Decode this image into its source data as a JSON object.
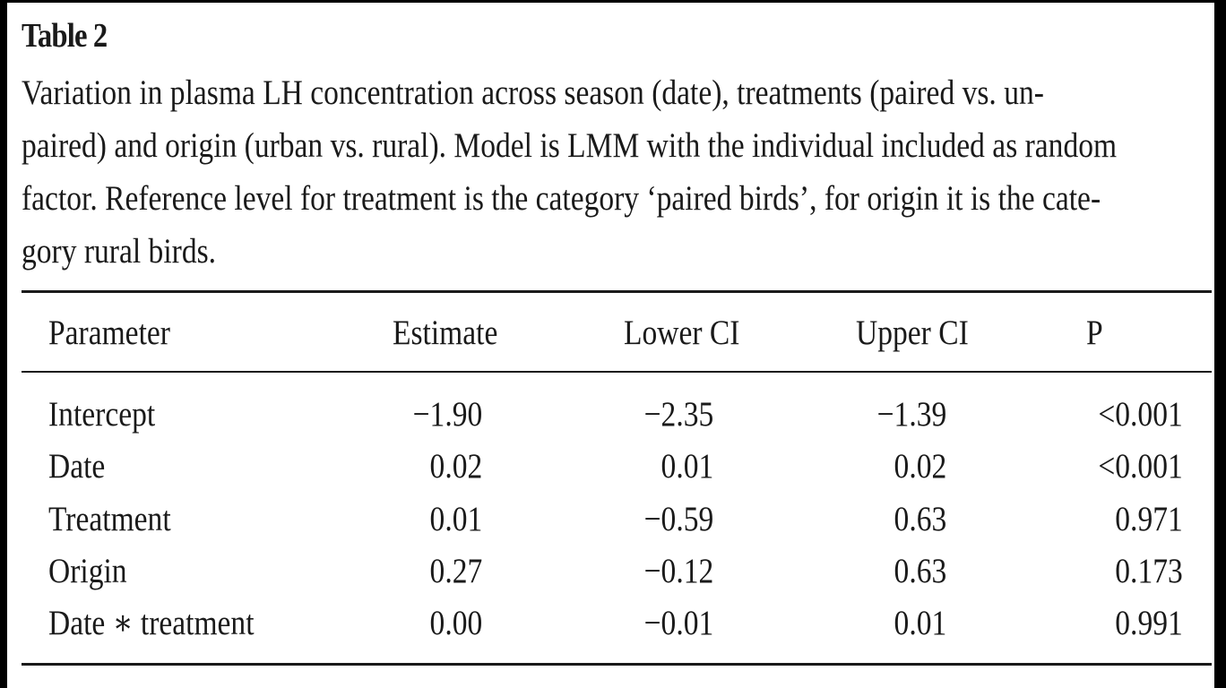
{
  "table_label": "Table 2",
  "caption_lines": [
    "Variation in plasma LH concentration across season (date), treatments (paired vs. un-",
    "paired) and origin (urban vs. rural). Model is LMM with the individual included as random",
    "factor. Reference level for treatment is the category ‘paired birds’, for origin it is the cate-",
    "gory rural birds."
  ],
  "table": {
    "headers": [
      "Parameter",
      "Estimate",
      "Lower CI",
      "Upper CI",
      "P"
    ],
    "rows": [
      [
        "Intercept",
        "−1.90",
        "−2.35",
        "−1.39",
        "<0.001"
      ],
      [
        "Date",
        "0.02",
        "0.01",
        "0.02",
        "<0.001"
      ],
      [
        "Treatment",
        "0.01",
        "−0.59",
        "0.63",
        "0.971"
      ],
      [
        "Origin",
        "0.27",
        "−0.12",
        "0.63",
        "0.173"
      ],
      [
        "Date ∗ treatment",
        "0.00",
        "−0.01",
        "0.01",
        "0.991"
      ]
    ]
  }
}
